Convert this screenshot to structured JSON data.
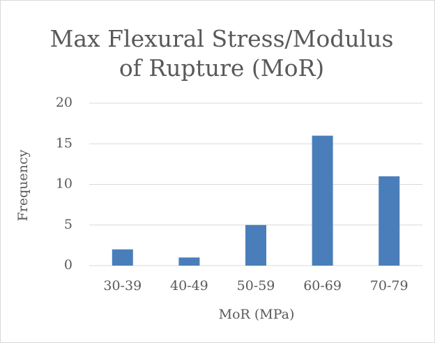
{
  "chart_data": {
    "type": "bar",
    "title": "Max Flexural Stress/Modulus of Rupture (MoR)",
    "x_label": "MoR (MPa)",
    "y_label": "Frequency",
    "categories": [
      "30-39",
      "40-49",
      "50-59",
      "60-69",
      "70-79"
    ],
    "values": [
      2,
      1,
      5,
      16,
      11
    ],
    "color": "#4a7ebb",
    "ylim": [
      0,
      20
    ],
    "yticks": [
      0,
      5,
      10,
      15,
      20
    ],
    "grid": true
  }
}
